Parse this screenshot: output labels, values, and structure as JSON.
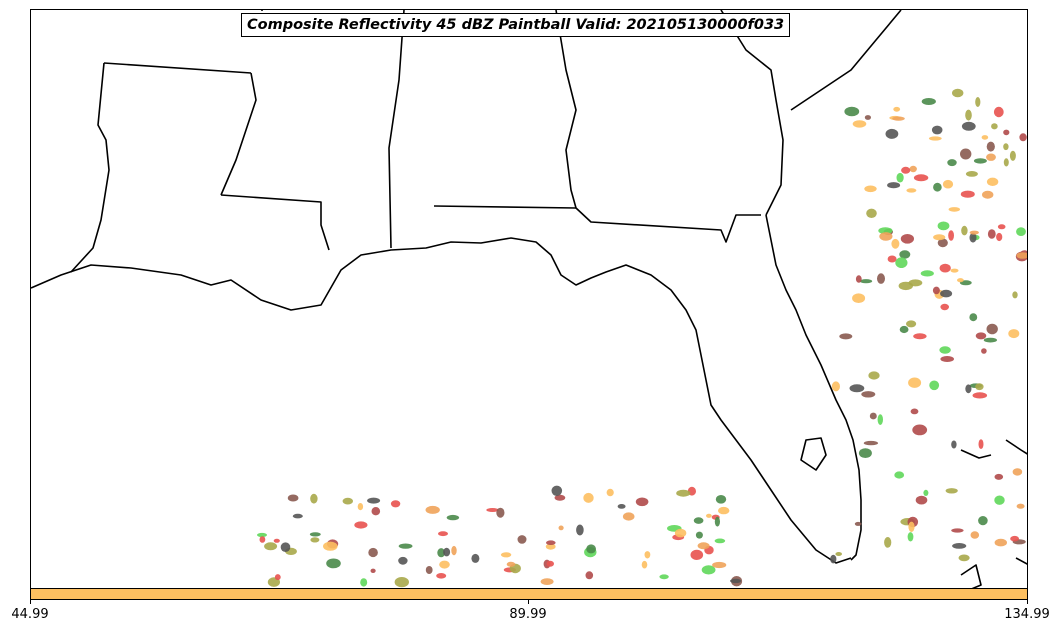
{
  "title": "Composite Reflectivity 45 dBZ Paintball Valid: 202105130000f033",
  "colorbar": {
    "color": "#fdbf60",
    "ticks": [
      "44.99",
      "89.99",
      "134.99"
    ]
  },
  "paintball_colors": [
    "#e8524f",
    "#f0a35a",
    "#fdbf60",
    "#a8a84a",
    "#5fd75a",
    "#4a8a4a",
    "#8a5a50",
    "#555555",
    "#b04a4a"
  ]
}
